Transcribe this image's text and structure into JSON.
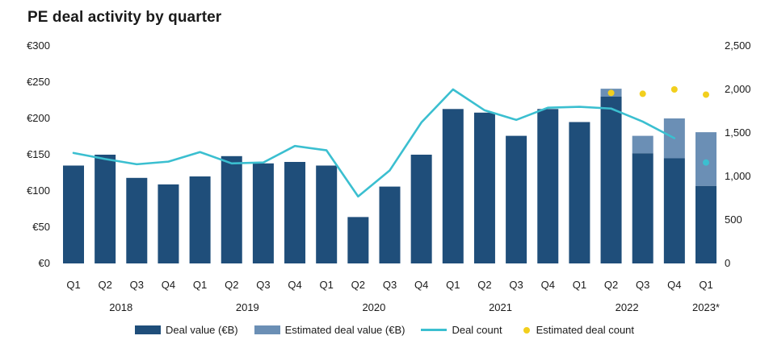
{
  "chart_data": {
    "type": "bar",
    "title": "PE deal activity by quarter",
    "categories": [
      "Q1",
      "Q2",
      "Q3",
      "Q4",
      "Q1",
      "Q2",
      "Q3",
      "Q4",
      "Q1",
      "Q2",
      "Q3",
      "Q4",
      "Q1",
      "Q2",
      "Q3",
      "Q4",
      "Q1",
      "Q2",
      "Q3",
      "Q4",
      "Q1"
    ],
    "years": [
      {
        "label": "2018",
        "from": 0,
        "to": 3
      },
      {
        "label": "2019",
        "from": 4,
        "to": 7
      },
      {
        "label": "2020",
        "from": 8,
        "to": 11
      },
      {
        "label": "2021",
        "from": 12,
        "to": 15
      },
      {
        "label": "2022",
        "from": 16,
        "to": 19
      },
      {
        "label": "2023*",
        "from": 20,
        "to": 20
      }
    ],
    "y_left": {
      "ylim": [
        0,
        300
      ],
      "ticks": [
        "€0",
        "€50",
        "€100",
        "€150",
        "€200",
        "€250",
        "€300"
      ]
    },
    "y_right": {
      "ylim": [
        0,
        2500
      ],
      "ticks": [
        "0",
        "500",
        "1,000",
        "1,500",
        "2,000",
        "2,500"
      ]
    },
    "series": [
      {
        "name": "Deal value (€B)",
        "type": "bar",
        "axis": "left",
        "color": "#1f4e7a",
        "values": [
          135,
          150,
          118,
          109,
          120,
          148,
          138,
          140,
          135,
          64,
          106,
          150,
          213,
          208,
          176,
          213,
          195,
          230,
          152,
          145,
          107
        ]
      },
      {
        "name": "Estimated deal value (€B)",
        "type": "bar-stack",
        "axis": "left",
        "color": "#6b8fb5",
        "values": [
          0,
          0,
          0,
          0,
          0,
          0,
          0,
          0,
          0,
          0,
          0,
          0,
          0,
          0,
          0,
          0,
          0,
          11,
          24,
          55,
          74
        ]
      },
      {
        "name": "Deal count",
        "type": "line",
        "axis": "right",
        "color": "#3bbfd0",
        "values": [
          1270,
          1200,
          1140,
          1170,
          1280,
          1150,
          1160,
          1350,
          1300,
          770,
          1070,
          1620,
          2000,
          1760,
          1650,
          1790,
          1800,
          1780,
          1630,
          1440,
          null
        ]
      },
      {
        "name": "Estimated deal count",
        "type": "scatter",
        "axis": "right",
        "color": "#f2cf1d",
        "values": [
          null,
          null,
          null,
          null,
          null,
          null,
          null,
          null,
          null,
          null,
          null,
          null,
          null,
          null,
          null,
          null,
          null,
          1960,
          1950,
          2000,
          1940
        ]
      },
      {
        "name": "Estimated deal count (Q1 2023)",
        "type": "scatter",
        "axis": "right",
        "color": "#3bbfd0",
        "values": [
          null,
          null,
          null,
          null,
          null,
          null,
          null,
          null,
          null,
          null,
          null,
          null,
          null,
          null,
          null,
          null,
          null,
          null,
          null,
          null,
          1160
        ]
      }
    ],
    "legend": {
      "position": "bottom",
      "items": [
        {
          "label": "Deal value (€B)",
          "kind": "box",
          "color": "#1f4e7a"
        },
        {
          "label": "Estimated deal value (€B)",
          "kind": "box",
          "color": "#6b8fb5"
        },
        {
          "label": "Deal count",
          "kind": "line",
          "color": "#3bbfd0"
        },
        {
          "label": "Estimated deal count",
          "kind": "dot",
          "color": "#f2cf1d"
        }
      ]
    },
    "grid": false
  }
}
